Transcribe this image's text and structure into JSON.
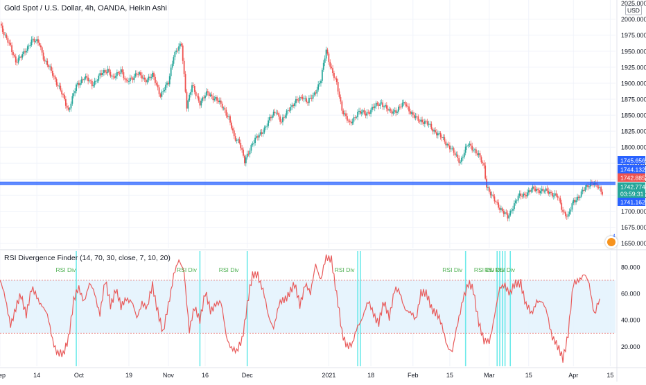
{
  "header": {
    "title": "Gold Spot / U.S. Dollar, 4h, OANDA, Heikin Ashi",
    "currency": "USD"
  },
  "indicator": {
    "title": "RSI Divergence Finder (14, 70, 30, close, 7, 10, 20)",
    "overbought": 70,
    "oversold": 30,
    "signal_label": "RSI Div"
  },
  "logo": {
    "badge": "4"
  },
  "colors": {
    "up": "#26a69a",
    "down": "#ef5350",
    "rsi_line": "#e85b5b",
    "band_fill": "#e3f2fd",
    "divergence_line": "#5ee8e8",
    "signal_text": "#4caf50",
    "price_line": "#2962ff"
  },
  "chart_data": [
    {
      "type": "candlestick",
      "title": "Gold Spot / U.S. Dollar, 4h, OANDA, Heikin Ashi",
      "y_ticks": [
        1650,
        1675,
        1700,
        1725,
        1750,
        1775,
        1800,
        1825,
        1850,
        1875,
        1900,
        1925,
        1950,
        1975,
        2000
      ],
      "y_tick_labels": [
        "1650.000",
        "1675.000",
        "1700.000",
        "1725.000",
        "1750.000",
        "1775.000",
        "1800.000",
        "1825.000",
        "1850.000",
        "1875.000",
        "1900.000",
        "1925.000",
        "1950.000",
        "1975.000",
        "2000.000"
      ],
      "y_top_label_partial": "2025.000",
      "ylim": [
        1642,
        2030
      ],
      "x_ticks": [
        "Sep",
        "14",
        "Oct",
        "19",
        "Nov",
        "16",
        "Dec",
        "2021",
        "18",
        "Feb",
        "15",
        "Mar",
        "15",
        "Apr",
        "15"
      ],
      "x_tick_positions": [
        0,
        14,
        30,
        49,
        64,
        78,
        94,
        125,
        141,
        157,
        171,
        186,
        201,
        218,
        232
      ],
      "x_range": [
        0,
        234
      ],
      "close_path": [
        [
          0,
          1993
        ],
        [
          3,
          1965
        ],
        [
          6,
          1935
        ],
        [
          9,
          1945
        ],
        [
          12,
          1968
        ],
        [
          15,
          1962
        ],
        [
          17,
          1935
        ],
        [
          20,
          1915
        ],
        [
          23,
          1888
        ],
        [
          26,
          1858
        ],
        [
          29,
          1895
        ],
        [
          32,
          1910
        ],
        [
          35,
          1898
        ],
        [
          38,
          1912
        ],
        [
          41,
          1922
        ],
        [
          43,
          1906
        ],
        [
          46,
          1922
        ],
        [
          48,
          1900
        ],
        [
          52,
          1916
        ],
        [
          55,
          1905
        ],
        [
          58,
          1912
        ],
        [
          61,
          1882
        ],
        [
          64,
          1900
        ],
        [
          66,
          1945
        ],
        [
          69,
          1960
        ],
        [
          71,
          1865
        ],
        [
          73,
          1895
        ],
        [
          76,
          1870
        ],
        [
          79,
          1885
        ],
        [
          82,
          1875
        ],
        [
          85,
          1862
        ],
        [
          87,
          1845
        ],
        [
          89,
          1815
        ],
        [
          91,
          1810
        ],
        [
          93,
          1776
        ],
        [
          96,
          1808
        ],
        [
          99,
          1820
        ],
        [
          102,
          1840
        ],
        [
          105,
          1858
        ],
        [
          107,
          1838
        ],
        [
          110,
          1862
        ],
        [
          113,
          1872
        ],
        [
          115,
          1880
        ],
        [
          117,
          1870
        ],
        [
          119,
          1880
        ],
        [
          122,
          1905
        ],
        [
          124,
          1952
        ],
        [
          126,
          1922
        ],
        [
          128,
          1898
        ],
        [
          130,
          1860
        ],
        [
          133,
          1835
        ],
        [
          136,
          1855
        ],
        [
          139,
          1852
        ],
        [
          142,
          1862
        ],
        [
          145,
          1870
        ],
        [
          148,
          1855
        ],
        [
          151,
          1858
        ],
        [
          154,
          1870
        ],
        [
          157,
          1848
        ],
        [
          160,
          1842
        ],
        [
          163,
          1835
        ],
        [
          166,
          1822
        ],
        [
          169,
          1810
        ],
        [
          171,
          1800
        ],
        [
          173,
          1788
        ],
        [
          175,
          1778
        ],
        [
          178,
          1805
        ],
        [
          180,
          1798
        ],
        [
          182,
          1786
        ],
        [
          184,
          1770
        ],
        [
          185,
          1740
        ],
        [
          187,
          1722
        ],
        [
          189,
          1712
        ],
        [
          191,
          1700
        ],
        [
          193,
          1690
        ],
        [
          195,
          1708
        ],
        [
          197,
          1722
        ],
        [
          200,
          1728
        ],
        [
          203,
          1735
        ],
        [
          206,
          1732
        ],
        [
          209,
          1730
        ],
        [
          212,
          1722
        ],
        [
          214,
          1700
        ],
        [
          216,
          1692
        ],
        [
          218,
          1715
        ],
        [
          221,
          1728
        ],
        [
          223,
          1738
        ],
        [
          225,
          1746
        ],
        [
          227,
          1738
        ],
        [
          229,
          1730
        ]
      ],
      "horizontal_lines": [
        1741.162,
        1742.774,
        1744.132,
        1745.656
      ],
      "price_labels": [
        {
          "label": "1745.656",
          "value": 1745.656,
          "color": "#2962ff"
        },
        {
          "label": "1744.132",
          "value": 1744.132,
          "color": "#2962ff"
        },
        {
          "label": "1742.885",
          "value": 1742.885,
          "color": "#ef5350"
        },
        {
          "label": "1742.774",
          "value": 1742.774,
          "color": "#26a69a"
        },
        {
          "label": "03:59:31",
          "value": 1742.774,
          "color": "#26a69a"
        },
        {
          "label": "1741.162",
          "value": 1741.162,
          "color": "#2962ff"
        }
      ]
    },
    {
      "type": "line",
      "title": "RSI Divergence Finder (14, 70, 30, close, 7, 10, 20)",
      "y_ticks": [
        20,
        40,
        60,
        80
      ],
      "y_tick_labels": [
        "20.000",
        "40.000",
        "60.000",
        "80.000"
      ],
      "ylim": [
        5,
        92
      ],
      "band": [
        30,
        70
      ],
      "rsi_path": [
        [
          0,
          70
        ],
        [
          2,
          55
        ],
        [
          4,
          38
        ],
        [
          6,
          48
        ],
        [
          8,
          58
        ],
        [
          10,
          46
        ],
        [
          12,
          62
        ],
        [
          14,
          58
        ],
        [
          16,
          52
        ],
        [
          18,
          42
        ],
        [
          20,
          26
        ],
        [
          22,
          15
        ],
        [
          24,
          12
        ],
        [
          26,
          28
        ],
        [
          28,
          54
        ],
        [
          30,
          63
        ],
        [
          32,
          56
        ],
        [
          34,
          66
        ],
        [
          36,
          60
        ],
        [
          38,
          46
        ],
        [
          40,
          68
        ],
        [
          42,
          52
        ],
        [
          44,
          64
        ],
        [
          46,
          48
        ],
        [
          48,
          58
        ],
        [
          50,
          54
        ],
        [
          52,
          40
        ],
        [
          54,
          55
        ],
        [
          56,
          48
        ],
        [
          58,
          66
        ],
        [
          60,
          48
        ],
        [
          62,
          28
        ],
        [
          64,
          52
        ],
        [
          66,
          75
        ],
        [
          68,
          83
        ],
        [
          70,
          78
        ],
        [
          72,
          32
        ],
        [
          74,
          48
        ],
        [
          76,
          42
        ],
        [
          78,
          60
        ],
        [
          80,
          46
        ],
        [
          82,
          54
        ],
        [
          84,
          52
        ],
        [
          86,
          28
        ],
        [
          88,
          20
        ],
        [
          90,
          14
        ],
        [
          92,
          26
        ],
        [
          94,
          52
        ],
        [
          96,
          72
        ],
        [
          98,
          76
        ],
        [
          100,
          62
        ],
        [
          102,
          42
        ],
        [
          104,
          36
        ],
        [
          106,
          50
        ],
        [
          108,
          55
        ],
        [
          110,
          62
        ],
        [
          112,
          65
        ],
        [
          114,
          52
        ],
        [
          116,
          68
        ],
        [
          118,
          58
        ],
        [
          120,
          84
        ],
        [
          122,
          70
        ],
        [
          124,
          86
        ],
        [
          126,
          88
        ],
        [
          128,
          58
        ],
        [
          130,
          30
        ],
        [
          132,
          22
        ],
        [
          134,
          20
        ],
        [
          136,
          36
        ],
        [
          138,
          44
        ],
        [
          140,
          52
        ],
        [
          142,
          46
        ],
        [
          144,
          38
        ],
        [
          146,
          52
        ],
        [
          148,
          44
        ],
        [
          150,
          62
        ],
        [
          152,
          60
        ],
        [
          154,
          50
        ],
        [
          156,
          44
        ],
        [
          158,
          40
        ],
        [
          160,
          62
        ],
        [
          162,
          58
        ],
        [
          164,
          50
        ],
        [
          166,
          46
        ],
        [
          168,
          34
        ],
        [
          170,
          22
        ],
        [
          172,
          16
        ],
        [
          174,
          36
        ],
        [
          176,
          58
        ],
        [
          178,
          66
        ],
        [
          180,
          62
        ],
        [
          182,
          40
        ],
        [
          184,
          22
        ],
        [
          186,
          24
        ],
        [
          188,
          44
        ],
        [
          190,
          62
        ],
        [
          192,
          68
        ],
        [
          194,
          60
        ],
        [
          196,
          66
        ],
        [
          198,
          70
        ],
        [
          200,
          50
        ],
        [
          202,
          44
        ],
        [
          204,
          56
        ],
        [
          206,
          52
        ],
        [
          208,
          46
        ],
        [
          210,
          28
        ],
        [
          212,
          18
        ],
        [
          214,
          12
        ],
        [
          216,
          30
        ],
        [
          218,
          66
        ],
        [
          220,
          72
        ],
        [
          222,
          74
        ],
        [
          224,
          66
        ],
        [
          226,
          46
        ],
        [
          228,
          56
        ]
      ],
      "divergence_lines_x": [
        29,
        76,
        94,
        136,
        137,
        177,
        189,
        190,
        191,
        192,
        194
      ],
      "signal_labels": [
        {
          "x": 25,
          "value": 80,
          "text": "RSI Div"
        },
        {
          "x": 71,
          "value": 80,
          "text": "RSI Div"
        },
        {
          "x": 87,
          "value": 80,
          "text": "RSI Div"
        },
        {
          "x": 131,
          "value": 80,
          "text": "RSI Div"
        },
        {
          "x": 172,
          "value": 80,
          "text": "RSI Div"
        },
        {
          "x": 184,
          "value": 80,
          "text": "RSI Div"
        },
        {
          "x": 188,
          "value": 80,
          "text": "RSI Div"
        },
        {
          "x": 192,
          "value": 80,
          "text": "RSI Div"
        }
      ]
    }
  ]
}
